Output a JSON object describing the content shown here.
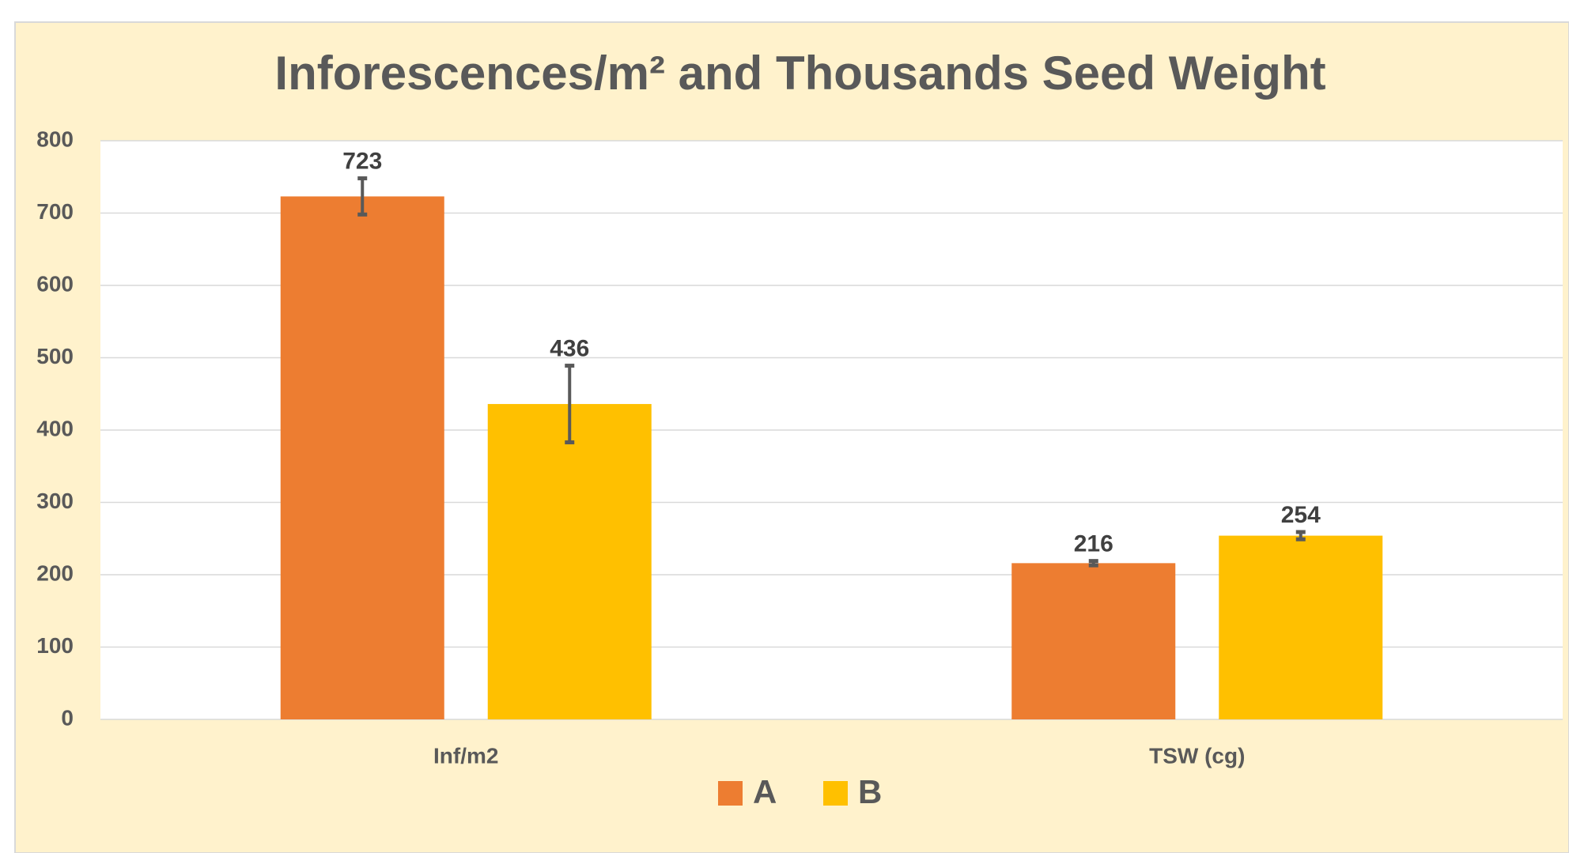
{
  "chart_data": {
    "type": "bar",
    "title": "Inforescences/m² and Thousands Seed Weight",
    "categories": [
      "Inf/m2",
      "TSW (cg)"
    ],
    "series": [
      {
        "name": "A",
        "color": "#ed7d31",
        "values": [
          723,
          216
        ],
        "errors": [
          25,
          3
        ]
      },
      {
        "name": "B",
        "color": "#ffc000",
        "values": [
          436,
          254
        ],
        "errors": [
          53,
          5
        ]
      }
    ],
    "ylim": [
      0,
      800
    ],
    "yticks": [
      0,
      100,
      200,
      300,
      400,
      500,
      600,
      700,
      800
    ],
    "grid": true,
    "legend": "bottom"
  }
}
